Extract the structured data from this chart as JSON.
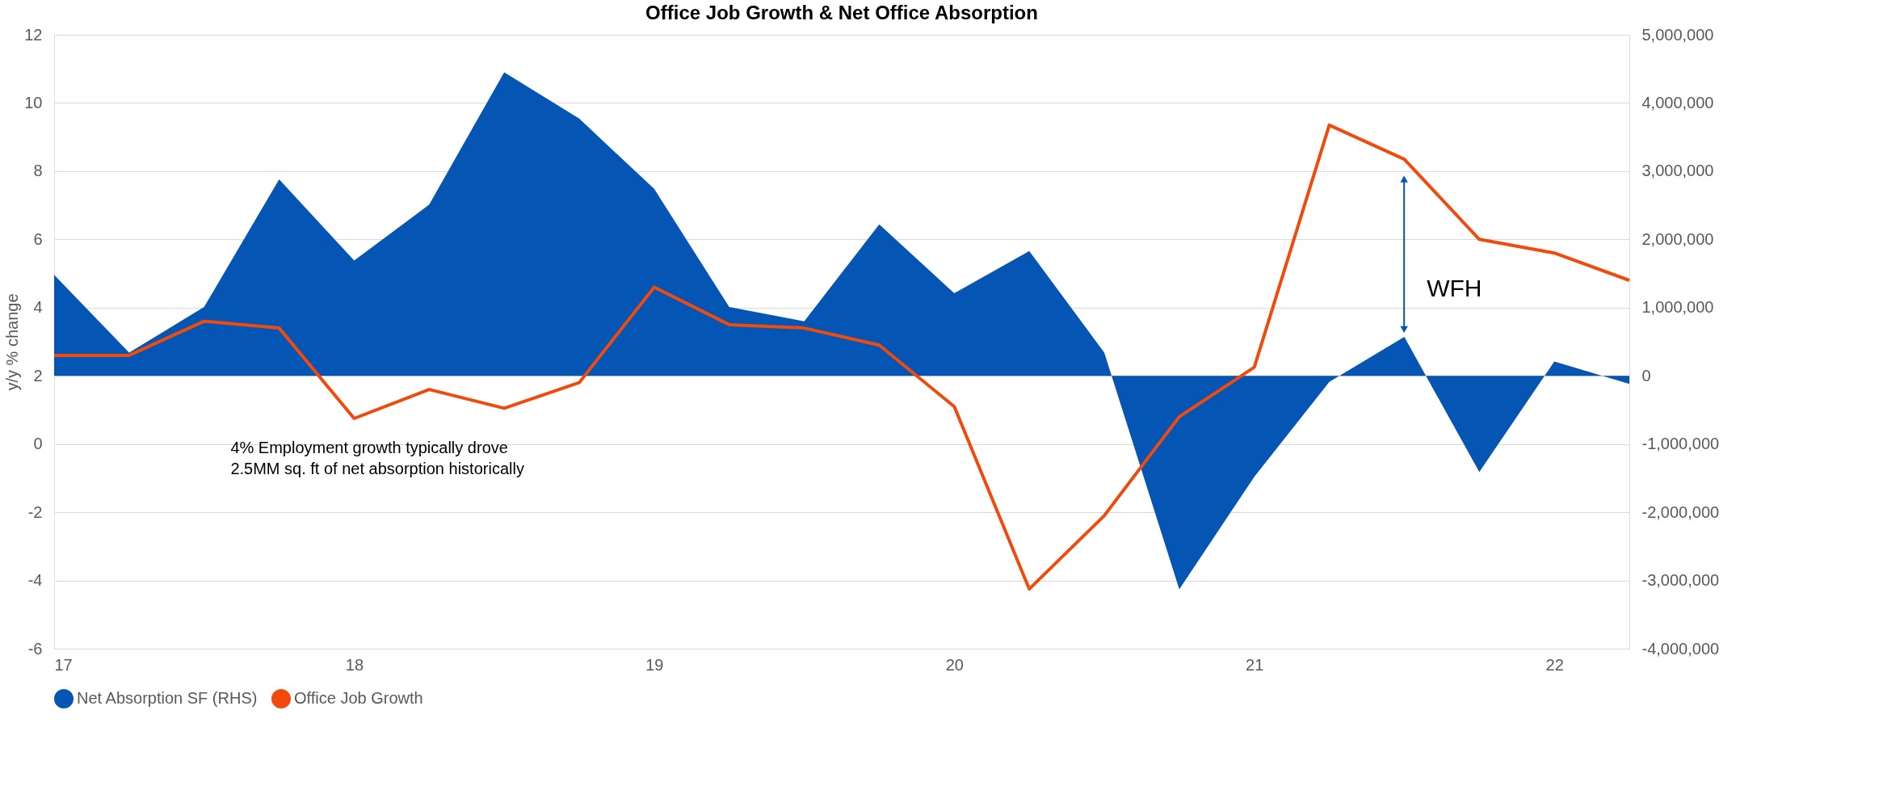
{
  "chart_data": {
    "type": "line",
    "title": "Office Job Growth & Net Office Absorption",
    "ylabel": "y/y % change",
    "x": [
      17,
      17.25,
      17.5,
      17.75,
      18,
      18.25,
      18.5,
      18.75,
      19,
      19.25,
      19.5,
      19.75,
      20,
      20.25,
      20.5,
      20.75,
      21,
      21.25,
      21.5,
      21.75,
      22,
      22.25
    ],
    "series": [
      {
        "name": "Net Absorption SF (RHS)",
        "type": "area",
        "axis": "y2",
        "color": "#0555b4",
        "values": [
          1480000,
          340000,
          1010000,
          2880000,
          1690000,
          2510000,
          4450000,
          3770000,
          2740000,
          1010000,
          800000,
          2220000,
          1210000,
          1830000,
          340000,
          -3130000,
          -1480000,
          -90000,
          570000,
          -1410000,
          210000,
          -120000
        ]
      },
      {
        "name": "Office Job Growth",
        "type": "line",
        "color": "#f04a0c",
        "values": [
          2.6,
          2.6,
          3.6,
          3.4,
          0.75,
          1.6,
          1.05,
          1.8,
          4.6,
          3.5,
          3.4,
          2.9,
          1.1,
          -4.25,
          -2.1,
          0.8,
          2.25,
          9.35,
          8.35,
          6.0,
          5.6,
          4.8
        ]
      }
    ],
    "xlim": [
      17,
      22.25
    ],
    "xticks": [
      17,
      18,
      19,
      20,
      21,
      22
    ],
    "ylim": [
      -6,
      12
    ],
    "yticks": [
      -6,
      -4,
      -2,
      0,
      2,
      4,
      6,
      8,
      10,
      12
    ],
    "y2lim": [
      -4000000,
      5000000
    ],
    "y2ticks": [
      {
        "value": -4000000,
        "label": "-4,000,000"
      },
      {
        "value": -3000000,
        "label": "-3,000,000"
      },
      {
        "value": -2000000,
        "label": "-2,000,000"
      },
      {
        "value": -1000000,
        "label": "-1,000,000"
      },
      0,
      {
        "value": 1000000,
        "label": "1,000,000"
      },
      {
        "value": 2000000,
        "label": "2,000,000"
      },
      {
        "value": 3000000,
        "label": "3,000,000"
      },
      {
        "value": 4000000,
        "label": "4,000,000"
      },
      {
        "value": 5000000,
        "label": "5,000,000"
      }
    ],
    "annotations": [
      "4% Employment growth typically drove\n2.5MM sq. ft of net absorption historically",
      "WFH"
    ],
    "grid": "y",
    "legend": "bottom",
    "line_style": "solid",
    "marker": "none"
  }
}
